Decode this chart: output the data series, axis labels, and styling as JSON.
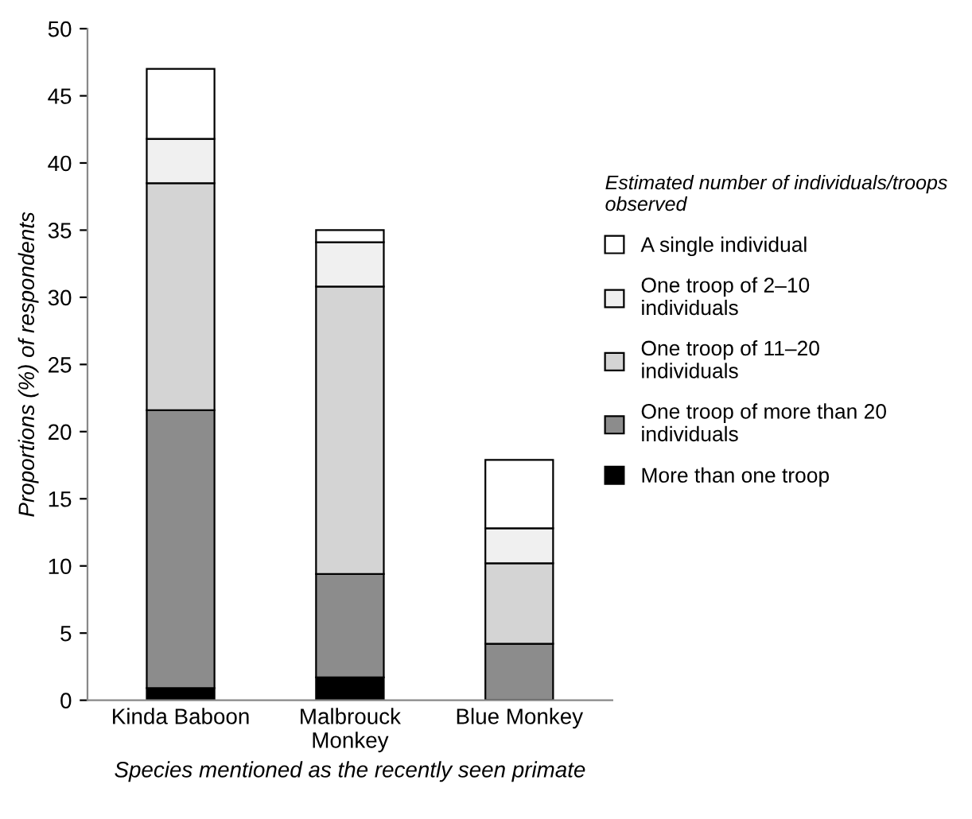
{
  "chart_data": {
    "type": "bar",
    "stacked": true,
    "xlabel": "Species mentioned as the recently seen primate",
    "ylabel": "Proportions (%) of respondents",
    "legend_title": "Estimated number of individuals/troops\nobserved",
    "categories": [
      "Kinda Baboon",
      "Malbrouck\nMonkey",
      "Blue Monkey"
    ],
    "series": [
      {
        "name": "More than one troop",
        "color": "#000000",
        "values": [
          0.9,
          1.7,
          0
        ]
      },
      {
        "name": "One troop of more than 20\nindividuals",
        "color": "#8c8c8c",
        "values": [
          20.7,
          7.7,
          4.2
        ]
      },
      {
        "name": "One troop of 11–20\nindividuals",
        "color": "#d4d4d4",
        "values": [
          16.9,
          21.4,
          6.0
        ]
      },
      {
        "name": "One troop of 2–10\nindividuals",
        "color": "#f0f0f0",
        "values": [
          3.3,
          3.3,
          2.6
        ]
      },
      {
        "name": "A single individual",
        "color": "#ffffff",
        "values": [
          5.2,
          0.9,
          5.1
        ]
      }
    ],
    "ylim": [
      0,
      50
    ],
    "yticks": [
      0,
      5,
      10,
      15,
      20,
      25,
      30,
      35,
      40,
      45,
      50
    ],
    "grid": false,
    "legend": "right"
  }
}
